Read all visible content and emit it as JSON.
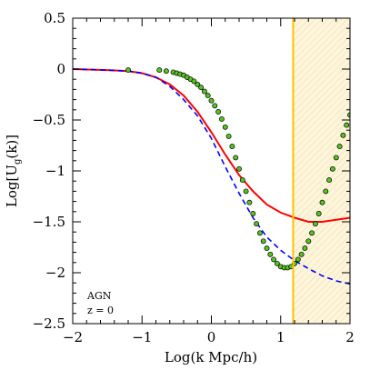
{
  "chart_data": {
    "type": "scatter",
    "title": "",
    "xlabel": "Log(k Mpc/h)",
    "ylabel_main": "Log[U",
    "ylabel_sub": "g",
    "ylabel_tail": "(k)]",
    "xlim": [
      -2,
      2
    ],
    "ylim": [
      -2.5,
      0.5
    ],
    "x_ticks": [
      -2,
      -1,
      0,
      1,
      2
    ],
    "x_tick_labels": [
      "−2",
      "−1",
      "0",
      "1",
      "2"
    ],
    "y_ticks": [
      -2.5,
      -2,
      -1.5,
      -1,
      -0.5,
      0,
      0.5
    ],
    "y_tick_labels": [
      "−2.5",
      "−2",
      "−1.5",
      "−1",
      "−0.5",
      "0",
      "0.5"
    ],
    "annotations": [
      "AGN",
      "z = 0"
    ],
    "vertical_line": {
      "x": 1.18,
      "color": "#ffc000"
    },
    "shaded_region": {
      "x_from": 1.18,
      "x_to": 2.0,
      "color": "#fdf5dc",
      "hatch_color": "#f2d9a0"
    },
    "series": [
      {
        "kind": "points",
        "color": "#55c41f",
        "edge": "#000000",
        "x": [
          -1.2,
          -0.75,
          -0.65,
          -0.55,
          -0.5,
          -0.45,
          -0.4,
          -0.35,
          -0.3,
          -0.25,
          -0.2,
          -0.15,
          -0.1,
          -0.05,
          0.0,
          0.05,
          0.1,
          0.15,
          0.2,
          0.25,
          0.3,
          0.35,
          0.4,
          0.45,
          0.5,
          0.55,
          0.6,
          0.65,
          0.7,
          0.75,
          0.8,
          0.85,
          0.9,
          0.95,
          1.0,
          1.05,
          1.1,
          1.15,
          1.2,
          1.25,
          1.3,
          1.35,
          1.4,
          1.45,
          1.5,
          1.55,
          1.6,
          1.65,
          1.7,
          1.75,
          1.8,
          1.85,
          1.9,
          1.95,
          2.0
        ],
        "y": [
          -0.01,
          -0.01,
          -0.02,
          -0.03,
          -0.04,
          -0.05,
          -0.06,
          -0.08,
          -0.1,
          -0.12,
          -0.15,
          -0.18,
          -0.22,
          -0.26,
          -0.31,
          -0.36,
          -0.42,
          -0.49,
          -0.57,
          -0.66,
          -0.76,
          -0.87,
          -0.98,
          -1.09,
          -1.2,
          -1.31,
          -1.42,
          -1.52,
          -1.61,
          -1.69,
          -1.76,
          -1.82,
          -1.87,
          -1.91,
          -1.94,
          -1.95,
          -1.95,
          -1.94,
          -1.91,
          -1.87,
          -1.82,
          -1.76,
          -1.69,
          -1.61,
          -1.52,
          -1.42,
          -1.31,
          -1.2,
          -1.09,
          -0.98,
          -0.87,
          -0.76,
          -0.65,
          -0.55,
          -0.45
        ]
      },
      {
        "kind": "line",
        "color": "#ff0000",
        "style": "solid",
        "x": [
          -2.0,
          -1.5,
          -1.2,
          -1.0,
          -0.8,
          -0.6,
          -0.4,
          -0.2,
          0.0,
          0.2,
          0.4,
          0.6,
          0.8,
          1.0,
          1.2,
          1.4,
          1.6,
          1.8,
          2.0
        ],
        "y": [
          0.0,
          -0.01,
          -0.02,
          -0.04,
          -0.08,
          -0.15,
          -0.26,
          -0.42,
          -0.62,
          -0.84,
          -1.04,
          -1.2,
          -1.33,
          -1.41,
          -1.46,
          -1.5,
          -1.5,
          -1.48,
          -1.46
        ]
      },
      {
        "kind": "line",
        "color": "#0000ff",
        "style": "dashed",
        "x": [
          -2.0,
          -1.5,
          -1.2,
          -1.0,
          -0.8,
          -0.6,
          -0.4,
          -0.2,
          0.0,
          0.2,
          0.4,
          0.6,
          0.8,
          1.0,
          1.2,
          1.4,
          1.6,
          1.8,
          2.0
        ],
        "y": [
          0.0,
          -0.01,
          -0.02,
          -0.04,
          -0.08,
          -0.17,
          -0.3,
          -0.46,
          -0.68,
          -0.96,
          -1.22,
          -1.46,
          -1.65,
          -1.78,
          -1.88,
          -1.96,
          -2.03,
          -2.08,
          -2.11
        ]
      }
    ]
  }
}
